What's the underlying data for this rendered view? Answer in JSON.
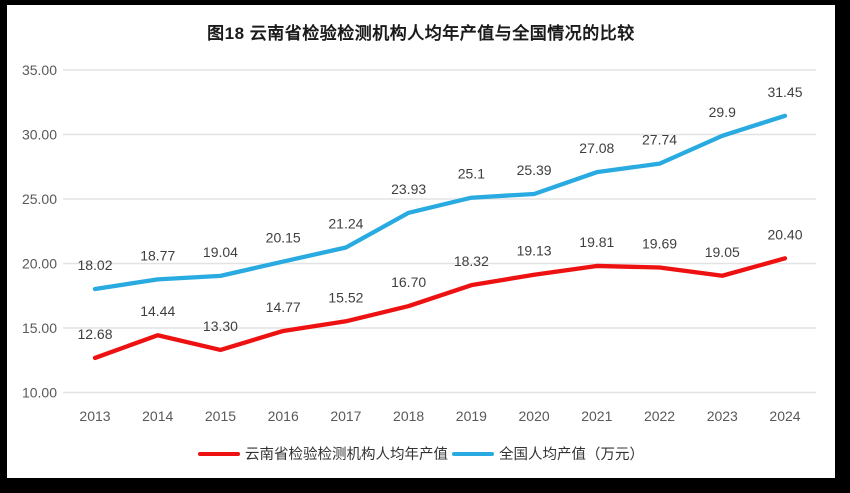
{
  "window": {
    "background_color": "#000000",
    "card_color": "#ffffff"
  },
  "chart_data": {
    "type": "line",
    "title": "图18  云南省检验检测机构人均年产值与全国情况的比较",
    "categories": [
      "2013",
      "2014",
      "2015",
      "2016",
      "2017",
      "2018",
      "2019",
      "2020",
      "2021",
      "2022",
      "2023",
      "2024"
    ],
    "series": [
      {
        "name": "云南省检验检测机构人均年产值",
        "color": "#ee1111",
        "values": [
          12.68,
          14.44,
          13.3,
          14.77,
          15.52,
          16.7,
          18.32,
          19.13,
          19.81,
          19.69,
          19.05,
          20.4
        ],
        "labels": [
          "12.68",
          "14.44",
          "13.30",
          "14.77",
          "15.52",
          "16.70",
          "18.32",
          "19.13",
          "19.81",
          "19.69",
          "19.05",
          "20.40"
        ]
      },
      {
        "name": "全国人均产值（万元）",
        "color": "#29abe2",
        "values": [
          18.02,
          18.77,
          19.04,
          20.15,
          21.24,
          23.93,
          25.1,
          25.39,
          27.08,
          27.74,
          29.9,
          31.45
        ],
        "labels": [
          "18.02",
          "18.77",
          "19.04",
          "20.15",
          "21.24",
          "23.93",
          "25.1",
          "25.39",
          "27.08",
          "27.74",
          "29.9",
          "31.45"
        ]
      }
    ],
    "y_ticks": [
      "35.00",
      "30.00",
      "25.00",
      "20.00",
      "15.00",
      "10.00"
    ],
    "ylim": [
      10,
      35
    ],
    "xlabel": "",
    "ylabel": "",
    "grid": true,
    "legend_position": "bottom",
    "colors": {
      "gridline": "#e3e3e3",
      "axis_text": "#595959",
      "data_label_text": "#3f3f3f",
      "title_text": "#1a1a1a"
    }
  }
}
